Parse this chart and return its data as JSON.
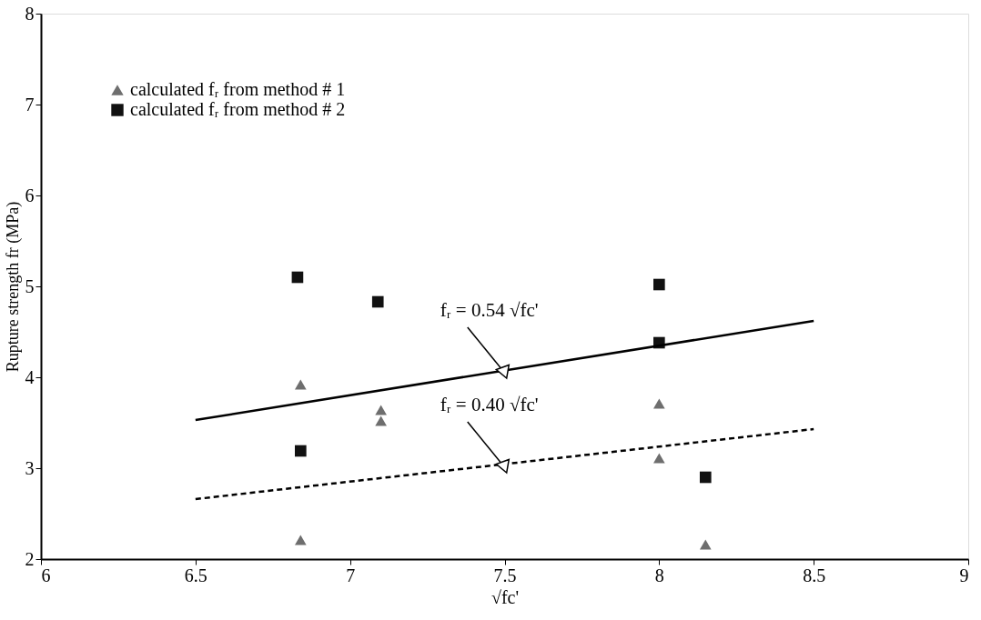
{
  "chart_data": {
    "type": "scatter",
    "xlabel": "√fc'",
    "ylabel": "Rupture strength  fr  (MPa)",
    "xlim": [
      6,
      9
    ],
    "xticks": [
      6,
      6.5,
      7,
      7.5,
      8,
      8.5,
      9
    ],
    "ylim": [
      2,
      8
    ],
    "yticks": [
      2,
      3,
      4,
      5,
      6,
      7,
      8
    ],
    "grid": false,
    "legend": "top left",
    "series": [
      {
        "name": "calculated fᵣ from method # 1",
        "marker": "triangle",
        "color": "#6e6e6e",
        "x": [
          6.84,
          7.1,
          7.1,
          6.84,
          8.0,
          8.0,
          8.15
        ],
        "values": [
          3.92,
          3.64,
          3.52,
          2.21,
          3.71,
          3.11,
          2.16
        ]
      },
      {
        "name": "calculated fᵣ from method # 2",
        "marker": "square",
        "color": "#111111",
        "x": [
          6.83,
          7.09,
          6.84,
          8.0,
          8.0,
          8.15
        ],
        "values": [
          5.1,
          4.83,
          3.19,
          5.02,
          4.38,
          2.9
        ]
      },
      {
        "type": "line",
        "line_style": "solid",
        "marker": "none",
        "color": "#000000",
        "x": [
          6.5,
          8.5
        ],
        "values": [
          3.53,
          4.62
        ]
      },
      {
        "type": "line",
        "line_style": "dashed",
        "marker": "none",
        "color": "#000000",
        "x": [
          6.5,
          8.5
        ],
        "values": [
          2.66,
          3.43
        ]
      }
    ],
    "annotations": [
      {
        "text": "fᵣ  =  0.54   √fc'",
        "x": 7.5,
        "y": 4.05
      },
      {
        "text": "fᵣ  =  0.40   √fc'",
        "x": 7.5,
        "y": 3.01
      }
    ]
  }
}
